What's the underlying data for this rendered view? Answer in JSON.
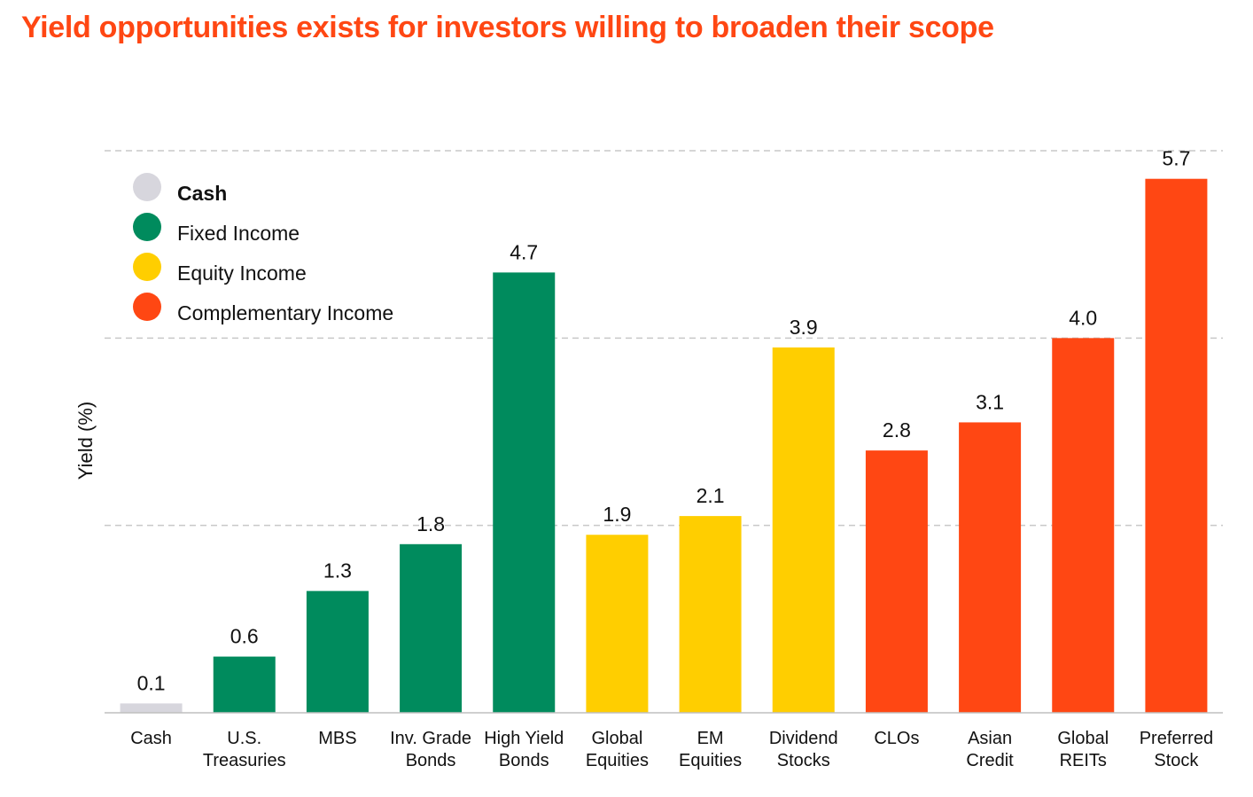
{
  "title": "Yield opportunities exists for investors willing to broaden their scope",
  "colors": {
    "title": "#ff4713",
    "Cash": "#d7d6dd",
    "Fixed Income": "#008b5d",
    "Equity Income": "#ffce00",
    "Complementary Income": "#ff4713"
  },
  "legend": [
    {
      "label": "Cash",
      "color": "#d7d6dd"
    },
    {
      "label": "Fixed Income",
      "color": "#008b5d"
    },
    {
      "label": "Equity Income",
      "color": "#ffce00"
    },
    {
      "label": "Complementary Income",
      "color": "#ff4713"
    }
  ],
  "chart_data": {
    "type": "bar",
    "title": "Yield opportunities exists for investors willing to broaden their scope",
    "ylabel": "Yield (%)",
    "xlabel": "",
    "ylim": [
      0,
      6
    ],
    "grid": true,
    "legend_position": "top-left",
    "categories": [
      [
        "Cash"
      ],
      [
        "U.S.",
        "Treasuries"
      ],
      [
        "MBS"
      ],
      [
        "Inv. Grade",
        "Bonds"
      ],
      [
        "High Yield",
        "Bonds"
      ],
      [
        "Global",
        "Equities"
      ],
      [
        "EM",
        "Equities"
      ],
      [
        "Dividend",
        "Stocks"
      ],
      [
        "CLOs"
      ],
      [
        "Asian",
        "Credit"
      ],
      [
        "Global",
        "REITs"
      ],
      [
        "Preferred",
        "Stock"
      ]
    ],
    "values": [
      0.1,
      0.6,
      1.3,
      1.8,
      4.7,
      1.9,
      2.1,
      3.9,
      2.8,
      3.1,
      4.0,
      5.7
    ],
    "labels": [
      "0.1",
      "0.6",
      "1.3",
      "1.8",
      "4.7",
      "1.9",
      "2.1",
      "3.9",
      "2.8",
      "3.1",
      "4.0",
      "5.7"
    ],
    "groups": [
      "Cash",
      "Fixed Income",
      "Fixed Income",
      "Fixed Income",
      "Fixed Income",
      "Equity Income",
      "Equity Income",
      "Equity Income",
      "Complementary Income",
      "Complementary Income",
      "Complementary Income",
      "Complementary Income"
    ]
  }
}
